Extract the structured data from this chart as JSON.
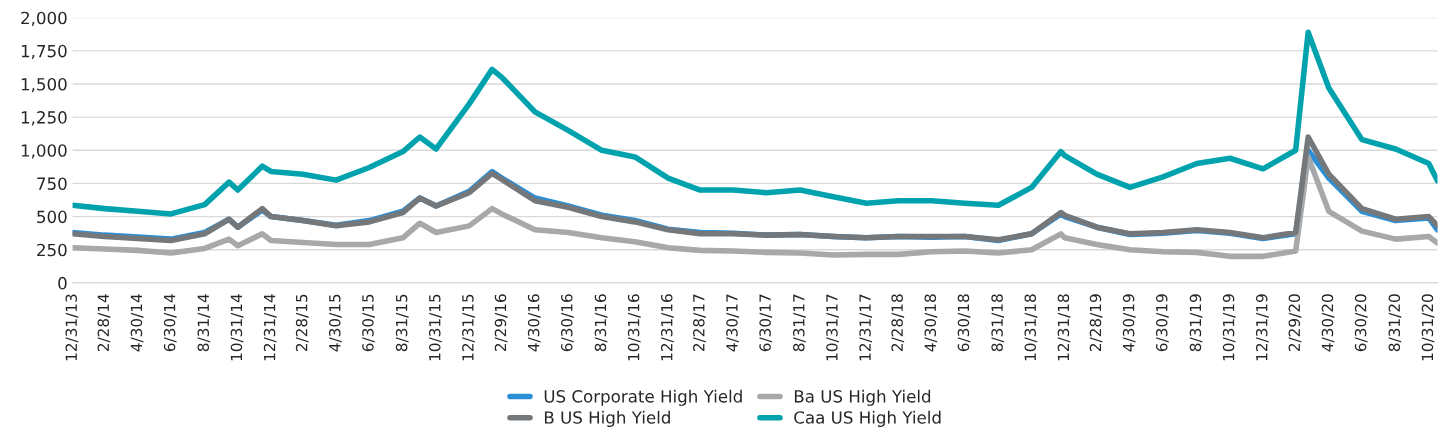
{
  "chart_data": {
    "type": "line",
    "x": [
      "2013-12-31",
      "2014-02-28",
      "2014-04-30",
      "2014-06-30",
      "2014-08-31",
      "2014-10-15",
      "2014-10-31",
      "2014-12-15",
      "2014-12-31",
      "2015-02-28",
      "2015-04-30",
      "2015-06-30",
      "2015-08-31",
      "2015-10-01",
      "2015-10-31",
      "2015-12-31",
      "2016-02-11",
      "2016-02-29",
      "2016-04-30",
      "2016-06-30",
      "2016-08-31",
      "2016-10-31",
      "2016-12-31",
      "2017-02-28",
      "2017-04-30",
      "2017-06-30",
      "2017-08-31",
      "2017-10-31",
      "2017-12-31",
      "2018-02-28",
      "2018-04-30",
      "2018-06-30",
      "2018-08-31",
      "2018-10-31",
      "2018-12-24",
      "2018-12-31",
      "2019-02-28",
      "2019-04-30",
      "2019-06-30",
      "2019-08-31",
      "2019-10-31",
      "2019-12-31",
      "2020-02-29",
      "2020-03-23",
      "2020-04-30",
      "2020-06-30",
      "2020-08-31",
      "2020-10-31",
      "2020-11-16"
    ],
    "series": [
      {
        "name": "US Corporate High Yield",
        "color": "#2a8fd6",
        "values": [
          380,
          360,
          345,
          330,
          380,
          480,
          420,
          550,
          500,
          470,
          435,
          470,
          540,
          640,
          580,
          690,
          840,
          790,
          640,
          580,
          510,
          470,
          405,
          380,
          375,
          360,
          365,
          350,
          340,
          350,
          345,
          350,
          320,
          370,
          520,
          500,
          420,
          365,
          375,
          395,
          375,
          335,
          370,
          1000,
          790,
          540,
          470,
          490,
          400
        ]
      },
      {
        "name": "Ba US High Yield",
        "color": "#a7a8aa",
        "values": [
          265,
          255,
          245,
          225,
          260,
          330,
          280,
          370,
          320,
          305,
          290,
          290,
          340,
          450,
          380,
          430,
          560,
          520,
          400,
          380,
          340,
          310,
          265,
          245,
          240,
          230,
          225,
          210,
          215,
          215,
          235,
          240,
          225,
          250,
          370,
          340,
          290,
          250,
          235,
          230,
          200,
          200,
          240,
          950,
          540,
          390,
          330,
          350,
          300
        ]
      },
      {
        "name": "B US High Yield",
        "color": "#75787b",
        "values": [
          370,
          350,
          335,
          320,
          370,
          480,
          420,
          560,
          500,
          470,
          430,
          460,
          530,
          640,
          580,
          680,
          825,
          780,
          620,
          570,
          500,
          460,
          400,
          370,
          370,
          360,
          365,
          350,
          340,
          350,
          350,
          350,
          325,
          370,
          530,
          510,
          420,
          370,
          380,
          400,
          380,
          340,
          380,
          1100,
          820,
          560,
          480,
          500,
          430
        ]
      },
      {
        "name": "Caa US High Yield",
        "color": "#00a3ad",
        "values": [
          585,
          560,
          540,
          520,
          590,
          760,
          700,
          880,
          840,
          820,
          775,
          870,
          990,
          1100,
          1010,
          1350,
          1610,
          1550,
          1290,
          1150,
          1000,
          950,
          790,
          700,
          700,
          680,
          700,
          650,
          600,
          620,
          620,
          600,
          585,
          720,
          990,
          960,
          820,
          720,
          800,
          900,
          940,
          860,
          1000,
          1890,
          1470,
          1080,
          1010,
          900,
          770
        ]
      }
    ],
    "xlim": [
      "2013-12-31",
      "2020-11-16"
    ],
    "xticks": [
      {
        "value": "2013-12-31",
        "label": "12/31/13"
      },
      {
        "value": "2014-02-28",
        "label": "2/28/14"
      },
      {
        "value": "2014-04-30",
        "label": "4/30/14"
      },
      {
        "value": "2014-06-30",
        "label": "6/30/14"
      },
      {
        "value": "2014-08-31",
        "label": "8/31/14"
      },
      {
        "value": "2014-10-31",
        "label": "10/31/14"
      },
      {
        "value": "2014-12-31",
        "label": "12/31/14"
      },
      {
        "value": "2015-02-28",
        "label": "2/28/15"
      },
      {
        "value": "2015-04-30",
        "label": "4/30/15"
      },
      {
        "value": "2015-06-30",
        "label": "6/30/15"
      },
      {
        "value": "2015-08-31",
        "label": "8/31/15"
      },
      {
        "value": "2015-10-31",
        "label": "10/31/15"
      },
      {
        "value": "2015-12-31",
        "label": "12/31/15"
      },
      {
        "value": "2016-02-29",
        "label": "2/29/16"
      },
      {
        "value": "2016-04-30",
        "label": "4/30/16"
      },
      {
        "value": "2016-06-30",
        "label": "6/30/16"
      },
      {
        "value": "2016-08-31",
        "label": "8/31/16"
      },
      {
        "value": "2016-10-31",
        "label": "10/31/16"
      },
      {
        "value": "2016-12-31",
        "label": "12/31/16"
      },
      {
        "value": "2017-02-28",
        "label": "2/28/17"
      },
      {
        "value": "2017-04-30",
        "label": "4/30/17"
      },
      {
        "value": "2017-06-30",
        "label": "6/30/17"
      },
      {
        "value": "2017-08-31",
        "label": "8/31/17"
      },
      {
        "value": "2017-10-31",
        "label": "10/31/17"
      },
      {
        "value": "2017-12-31",
        "label": "12/31/17"
      },
      {
        "value": "2018-02-28",
        "label": "2/28/18"
      },
      {
        "value": "2018-04-30",
        "label": "4/30/18"
      },
      {
        "value": "2018-06-30",
        "label": "6/30/18"
      },
      {
        "value": "2018-08-31",
        "label": "8/31/18"
      },
      {
        "value": "2018-10-31",
        "label": "10/31/18"
      },
      {
        "value": "2018-12-31",
        "label": "12/31/18"
      },
      {
        "value": "2019-02-28",
        "label": "2/28/19"
      },
      {
        "value": "2019-04-30",
        "label": "4/30/19"
      },
      {
        "value": "2019-06-30",
        "label": "6/30/19"
      },
      {
        "value": "2019-08-31",
        "label": "8/31/19"
      },
      {
        "value": "2019-10-31",
        "label": "10/31/19"
      },
      {
        "value": "2019-12-31",
        "label": "12/31/19"
      },
      {
        "value": "2020-02-29",
        "label": "2/29/20"
      },
      {
        "value": "2020-04-30",
        "label": "4/30/20"
      },
      {
        "value": "2020-06-30",
        "label": "6/30/20"
      },
      {
        "value": "2020-08-31",
        "label": "8/31/20"
      },
      {
        "value": "2020-10-31",
        "label": "10/31/20"
      }
    ],
    "ylim": [
      0,
      2000
    ],
    "yticks": [
      0,
      250,
      500,
      750,
      {
        "value": 1000,
        "label": "1,000"
      },
      {
        "value": 1250,
        "label": "1,250"
      },
      {
        "value": 1500,
        "label": "1,500"
      },
      {
        "value": 1750,
        "label": "1,750"
      },
      {
        "value": 2000,
        "label": "2,000"
      }
    ],
    "grid": "y",
    "legend": "bottom",
    "marker": "none",
    "line_style": "solid"
  }
}
